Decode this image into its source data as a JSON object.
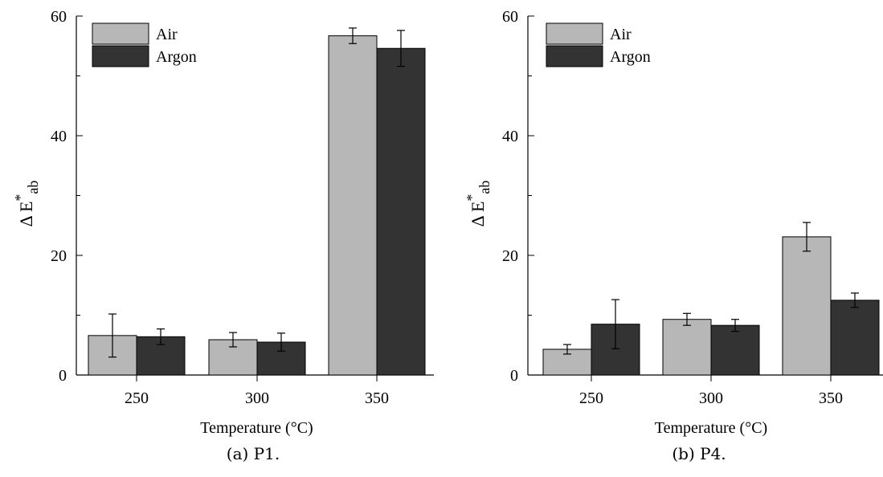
{
  "colors": {
    "air": "#b7b7b7",
    "argon": "#333333",
    "axis": "#000000"
  },
  "charts": [
    {
      "caption": "(a) P1.",
      "chart_data": {
        "type": "bar",
        "categories": [
          "250",
          "300",
          "350"
        ],
        "xlabel": "Temperature (°C)",
        "ylabel_main": "Δ E",
        "ylabel_sup": "*",
        "ylabel_sub": "ab",
        "ylim": [
          0,
          60
        ],
        "yticks": [
          0,
          20,
          40,
          60
        ],
        "legend_position": "top-left",
        "series": [
          {
            "name": "Air",
            "values": [
              6.6,
              5.9,
              56.7
            ],
            "errors": [
              3.6,
              1.2,
              1.3
            ]
          },
          {
            "name": "Argon",
            "values": [
              6.4,
              5.5,
              54.6
            ],
            "errors": [
              1.3,
              1.5,
              3.0
            ]
          }
        ]
      }
    },
    {
      "caption": "(b) P4.",
      "chart_data": {
        "type": "bar",
        "categories": [
          "250",
          "300",
          "350"
        ],
        "xlabel": "Temperature (°C)",
        "ylabel_main": "Δ E",
        "ylabel_sup": "*",
        "ylabel_sub": "ab",
        "ylim": [
          0,
          60
        ],
        "yticks": [
          0,
          20,
          40,
          60
        ],
        "legend_position": "top-left",
        "series": [
          {
            "name": "Air",
            "values": [
              4.3,
              9.3,
              23.1
            ],
            "errors": [
              0.8,
              1.0,
              2.4
            ]
          },
          {
            "name": "Argon",
            "values": [
              8.5,
              8.3,
              12.5
            ],
            "errors": [
              4.1,
              1.0,
              1.2
            ]
          }
        ]
      }
    }
  ]
}
